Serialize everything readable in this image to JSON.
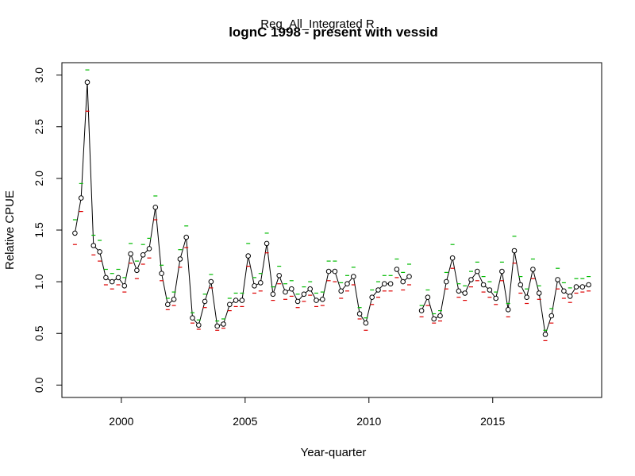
{
  "chart_data": {
    "type": "line",
    "subtitle": "Reg_All_Integrated R",
    "title": "lognC 1998 - present with vessid",
    "xlabel": "Year-quarter",
    "ylabel": "Relative CPUE",
    "xlim": [
      1997.6,
      2019.4
    ],
    "ylim": [
      -0.12,
      3.12
    ],
    "x_ticks": [
      2000,
      2005,
      2010,
      2015
    ],
    "x_tick_labels": [
      "2000",
      "2005",
      "2010",
      "2015"
    ],
    "y_ticks": [
      0,
      0.5,
      1,
      1.5,
      2,
      2.5,
      3
    ],
    "y_tick_labels": [
      "0.0",
      "0.5",
      "1.0",
      "1.5",
      "2.0",
      "2.5",
      "3.0"
    ],
    "colors": {
      "line": "#000000",
      "upper": "#00bb00",
      "lower": "#dd0000"
    },
    "segments": [
      {
        "x": [
          1998.125,
          1998.375,
          1998.625,
          1998.875,
          1999.125,
          1999.375,
          1999.625,
          1999.875,
          2000.125,
          2000.375,
          2000.625,
          2000.875,
          2001.125,
          2001.375,
          2001.625,
          2001.875,
          2002.125,
          2002.375,
          2002.625,
          2002.875,
          2003.125,
          2003.375,
          2003.625,
          2003.875,
          2004.125,
          2004.375,
          2004.625,
          2004.875,
          2005.125,
          2005.375,
          2005.625,
          2005.875,
          2006.125,
          2006.375,
          2006.625,
          2006.875,
          2007.125,
          2007.375,
          2007.625,
          2007.875,
          2008.125,
          2008.375,
          2008.625,
          2008.875,
          2009.125,
          2009.375,
          2009.625,
          2009.875,
          2010.125,
          2010.375,
          2010.625,
          2010.875
        ],
        "y": [
          1.47,
          1.81,
          2.93,
          1.35,
          1.29,
          1.04,
          1.0,
          1.04,
          0.96,
          1.27,
          1.11,
          1.26,
          1.32,
          1.72,
          1.08,
          0.78,
          0.83,
          1.22,
          1.43,
          0.65,
          0.58,
          0.81,
          1.0,
          0.57,
          0.59,
          0.78,
          0.82,
          0.82,
          1.25,
          0.96,
          0.99,
          1.37,
          0.88,
          1.06,
          0.9,
          0.93,
          0.81,
          0.88,
          0.93,
          0.82,
          0.83,
          1.1,
          1.1,
          0.91,
          0.98,
          1.05,
          0.69,
          0.6,
          0.85,
          0.92,
          0.98,
          0.98
        ]
      },
      {
        "x": [
          2011.125,
          2011.375,
          2011.625
        ],
        "y": [
          1.12,
          1.0,
          1.05
        ]
      },
      {
        "x": [
          2012.125,
          2012.375,
          2012.625,
          2012.875,
          2013.125,
          2013.375,
          2013.625,
          2013.875,
          2014.125,
          2014.375,
          2014.625,
          2014.875,
          2015.125,
          2015.375,
          2015.625,
          2015.875,
          2016.125,
          2016.375,
          2016.625,
          2016.875,
          2017.125,
          2017.375,
          2017.625,
          2017.875,
          2018.125,
          2018.375,
          2018.625,
          2018.875
        ],
        "y": [
          0.72,
          0.85,
          0.64,
          0.67,
          1.0,
          1.23,
          0.91,
          0.89,
          1.02,
          1.1,
          0.97,
          0.92,
          0.84,
          1.1,
          0.73,
          1.3,
          0.97,
          0.85,
          1.12,
          0.89,
          0.49,
          0.67,
          1.02,
          0.91,
          0.86,
          0.95,
          0.95,
          0.97
        ]
      }
    ],
    "upper_ci": {
      "x": [
        1998.125,
        1998.375,
        1998.625,
        1998.875,
        1999.125,
        1999.375,
        1999.625,
        1999.875,
        2000.125,
        2000.375,
        2000.625,
        2000.875,
        2001.125,
        2001.375,
        2001.625,
        2001.875,
        2002.125,
        2002.375,
        2002.625,
        2002.875,
        2003.125,
        2003.375,
        2003.625,
        2003.875,
        2004.125,
        2004.375,
        2004.625,
        2004.875,
        2005.125,
        2005.375,
        2005.625,
        2005.875,
        2006.125,
        2006.375,
        2006.625,
        2006.875,
        2007.125,
        2007.375,
        2007.625,
        2007.875,
        2008.125,
        2008.375,
        2008.625,
        2008.875,
        2009.125,
        2009.375,
        2009.625,
        2009.875,
        2010.125,
        2010.375,
        2010.625,
        2010.875,
        2011.125,
        2011.375,
        2011.625,
        2012.125,
        2012.375,
        2012.625,
        2012.875,
        2013.125,
        2013.375,
        2013.625,
        2013.875,
        2014.125,
        2014.375,
        2014.625,
        2014.875,
        2015.125,
        2015.375,
        2015.625,
        2015.875,
        2016.125,
        2016.375,
        2016.625,
        2016.875,
        2017.125,
        2017.375,
        2017.625,
        2017.875,
        2018.125,
        2018.375,
        2018.625,
        2018.875
      ],
      "y": [
        1.6,
        1.95,
        3.05,
        1.45,
        1.4,
        1.12,
        1.08,
        1.12,
        1.04,
        1.37,
        1.2,
        1.36,
        1.42,
        1.83,
        1.16,
        0.84,
        0.9,
        1.31,
        1.54,
        0.7,
        0.63,
        0.88,
        1.07,
        0.62,
        0.64,
        0.84,
        0.89,
        0.89,
        1.37,
        1.04,
        1.08,
        1.47,
        0.95,
        1.15,
        0.98,
        1.01,
        0.88,
        0.95,
        1.0,
        0.89,
        0.9,
        1.2,
        1.2,
        0.99,
        1.06,
        1.14,
        0.75,
        0.65,
        0.92,
        1.0,
        1.06,
        1.06,
        1.22,
        1.09,
        1.17,
        0.77,
        0.92,
        0.69,
        0.72,
        1.09,
        1.36,
        0.98,
        0.96,
        1.1,
        1.19,
        1.05,
        1.0,
        0.9,
        1.19,
        0.79,
        1.44,
        1.05,
        0.93,
        1.22,
        0.96,
        0.53,
        0.74,
        1.13,
        0.99,
        0.94,
        1.03,
        1.03,
        1.05
      ]
    },
    "lower_ci": {
      "x": [
        1998.125,
        1998.375,
        1998.625,
        1998.875,
        1999.125,
        1999.375,
        1999.625,
        1999.875,
        2000.125,
        2000.375,
        2000.625,
        2000.875,
        2001.125,
        2001.375,
        2001.625,
        2001.875,
        2002.125,
        2002.375,
        2002.625,
        2002.875,
        2003.125,
        2003.375,
        2003.625,
        2003.875,
        2004.125,
        2004.375,
        2004.625,
        2004.875,
        2005.125,
        2005.375,
        2005.625,
        2005.875,
        2006.125,
        2006.375,
        2006.625,
        2006.875,
        2007.125,
        2007.375,
        2007.625,
        2007.875,
        2008.125,
        2008.375,
        2008.625,
        2008.875,
        2009.125,
        2009.375,
        2009.625,
        2009.875,
        2010.125,
        2010.375,
        2010.625,
        2010.875,
        2011.125,
        2011.375,
        2011.625,
        2012.125,
        2012.375,
        2012.625,
        2012.875,
        2013.125,
        2013.375,
        2013.625,
        2013.875,
        2014.125,
        2014.375,
        2014.625,
        2014.875,
        2015.125,
        2015.375,
        2015.625,
        2015.875,
        2016.125,
        2016.375,
        2016.625,
        2016.875,
        2017.125,
        2017.375,
        2017.625,
        2017.875,
        2018.125,
        2018.375,
        2018.625,
        2018.875
      ],
      "y": [
        1.36,
        1.68,
        2.65,
        1.26,
        1.2,
        0.97,
        0.93,
        0.97,
        0.9,
        1.18,
        1.03,
        1.17,
        1.23,
        1.6,
        1.01,
        0.73,
        0.77,
        1.14,
        1.33,
        0.6,
        0.54,
        0.75,
        0.94,
        0.53,
        0.55,
        0.72,
        0.76,
        0.76,
        1.15,
        0.89,
        0.91,
        1.28,
        0.82,
        0.98,
        0.83,
        0.86,
        0.75,
        0.81,
        0.87,
        0.76,
        0.77,
        1.01,
        1.0,
        0.84,
        0.91,
        0.97,
        0.64,
        0.53,
        0.78,
        0.85,
        0.91,
        0.91,
        1.04,
        0.92,
        0.97,
        0.66,
        0.77,
        0.6,
        0.62,
        0.93,
        1.13,
        0.85,
        0.82,
        0.95,
        1.01,
        0.9,
        0.85,
        0.78,
        1.01,
        0.66,
        1.18,
        0.89,
        0.79,
        1.03,
        0.83,
        0.43,
        0.6,
        0.93,
        0.84,
        0.8,
        0.89,
        0.9,
        0.91
      ]
    }
  }
}
